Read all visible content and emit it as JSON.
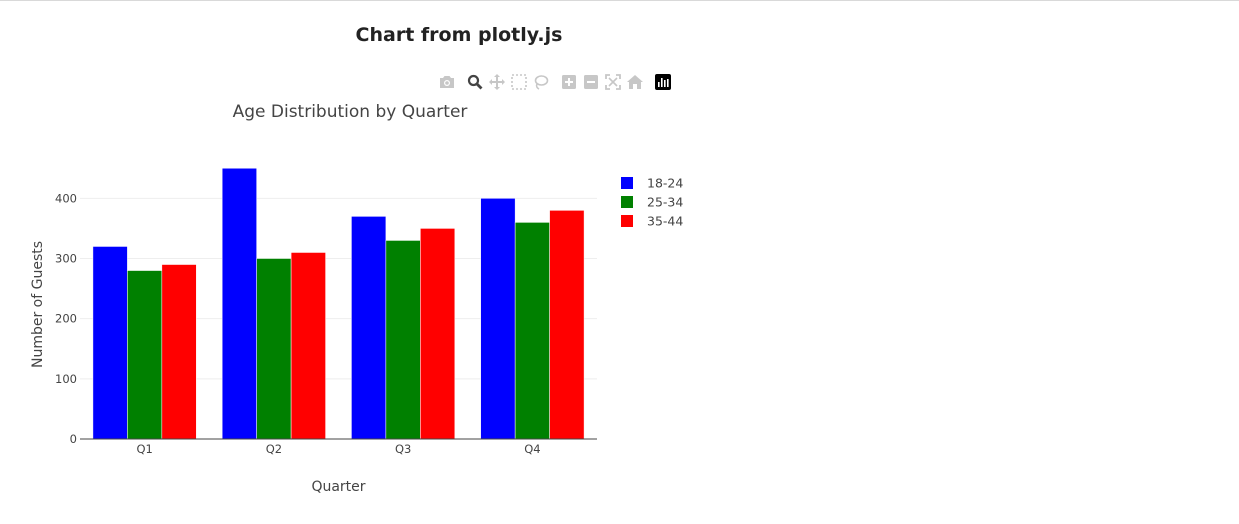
{
  "page": {
    "title": "Chart from plotly.js"
  },
  "modebar": {
    "icons": [
      "camera-icon",
      "zoom-icon",
      "pan-icon",
      "box-select-icon",
      "lasso-icon",
      "zoom-in-icon",
      "zoom-out-icon",
      "autoscale-icon",
      "reset-axes-icon",
      "plotly-logo-icon"
    ]
  },
  "chart_data": {
    "type": "bar",
    "title": "Age Distribution by Quarter",
    "xlabel": "Quarter",
    "ylabel": "Number of Guests",
    "categories": [
      "Q1",
      "Q2",
      "Q3",
      "Q4"
    ],
    "series": [
      {
        "name": "18-24",
        "color": "#0000ff",
        "values": [
          320,
          450,
          370,
          400
        ]
      },
      {
        "name": "25-34",
        "color": "#008000",
        "values": [
          280,
          300,
          330,
          360
        ]
      },
      {
        "name": "35-44",
        "color": "#ff0000",
        "values": [
          290,
          310,
          350,
          380
        ]
      }
    ],
    "yticks": [
      0,
      100,
      200,
      300,
      400
    ],
    "ylim": [
      0,
      473.7
    ],
    "grid": true,
    "legend_position": "top-right"
  }
}
